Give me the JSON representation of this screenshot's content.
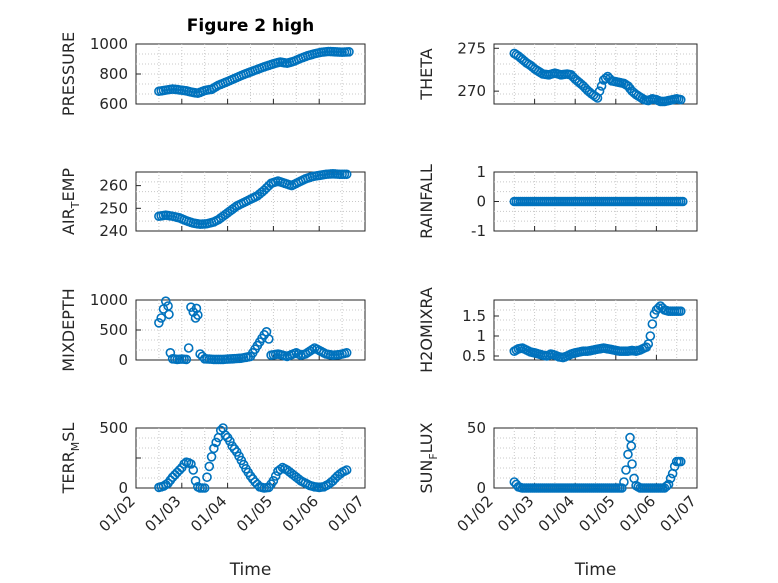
{
  "colors": {
    "marker": "#0072bd",
    "axis": "#262626",
    "grid": "#c8c8c8"
  },
  "x_tick_labels": [
    "01/02",
    "01/03",
    "01/04",
    "01/05",
    "01/06",
    "01/07"
  ],
  "chart_data": [
    {
      "type": "scatter",
      "id": "pressure",
      "title": "Figure 2 high",
      "ylabel": "PRESSURE",
      "ylabel_sub": "",
      "ylabel_tail": "",
      "xlabel": "",
      "xlim": [
        0,
        5
      ],
      "ylim": [
        600,
        1000
      ],
      "yticks": [
        600,
        800,
        1000
      ],
      "ytick_labels": [
        "600",
        "800",
        "1000"
      ],
      "grid": true,
      "points": [
        [
          0.5,
          685
        ],
        [
          0.8,
          700
        ],
        [
          1.0,
          692
        ],
        [
          1.1,
          688
        ],
        [
          1.2,
          680
        ],
        [
          1.35,
          672
        ],
        [
          1.5,
          690
        ],
        [
          1.65,
          698
        ],
        [
          1.8,
          725
        ],
        [
          2.0,
          750
        ],
        [
          2.15,
          770
        ],
        [
          2.3,
          790
        ],
        [
          2.45,
          808
        ],
        [
          2.6,
          825
        ],
        [
          2.8,
          848
        ],
        [
          3.0,
          868
        ],
        [
          3.15,
          880
        ],
        [
          3.3,
          872
        ],
        [
          3.45,
          885
        ],
        [
          3.6,
          905
        ],
        [
          3.75,
          922
        ],
        [
          3.9,
          935
        ],
        [
          4.05,
          945
        ],
        [
          4.2,
          950
        ],
        [
          4.35,
          948
        ],
        [
          4.5,
          945
        ],
        [
          4.65,
          948
        ]
      ]
    },
    {
      "type": "scatter",
      "id": "theta",
      "title": "",
      "ylabel": "THETA",
      "ylabel_sub": "",
      "ylabel_tail": "",
      "xlabel": "",
      "xlim": [
        0,
        5
      ],
      "ylim": [
        268.5,
        275.5
      ],
      "yticks": [
        270,
        275
      ],
      "ytick_labels": [
        "270",
        "275"
      ],
      "grid": true,
      "points": [
        [
          0.5,
          274.4
        ],
        [
          0.6,
          274.1
        ],
        [
          0.7,
          273.7
        ],
        [
          0.8,
          273.3
        ],
        [
          0.9,
          273.0
        ],
        [
          1.0,
          272.6
        ],
        [
          1.1,
          272.3
        ],
        [
          1.2,
          272.0
        ],
        [
          1.35,
          271.9
        ],
        [
          1.5,
          272.1
        ],
        [
          1.65,
          271.9
        ],
        [
          1.8,
          272.0
        ],
        [
          1.9,
          271.9
        ],
        [
          2.0,
          271.4
        ],
        [
          2.1,
          271.0
        ],
        [
          2.2,
          270.6
        ],
        [
          2.3,
          270.1
        ],
        [
          2.4,
          269.7
        ],
        [
          2.55,
          269.2
        ],
        [
          2.6,
          270.0
        ],
        [
          2.65,
          270.6
        ],
        [
          2.7,
          271.3
        ],
        [
          2.8,
          271.7
        ],
        [
          2.9,
          271.2
        ],
        [
          3.0,
          271.1
        ],
        [
          3.1,
          271.0
        ],
        [
          3.2,
          270.9
        ],
        [
          3.3,
          270.6
        ],
        [
          3.4,
          270.0
        ],
        [
          3.5,
          269.6
        ],
        [
          3.6,
          269.3
        ],
        [
          3.7,
          269.0
        ],
        [
          3.8,
          268.9
        ],
        [
          3.9,
          269.1
        ],
        [
          4.0,
          269.0
        ],
        [
          4.1,
          268.8
        ],
        [
          4.2,
          268.8
        ],
        [
          4.3,
          268.9
        ],
        [
          4.4,
          269.0
        ],
        [
          4.5,
          269.1
        ],
        [
          4.6,
          269.0
        ]
      ]
    },
    {
      "type": "scatter",
      "id": "air_temp",
      "title": "",
      "ylabel": "AIR",
      "ylabel_sub": "T",
      "ylabel_tail": "EMP",
      "xlabel": "",
      "xlim": [
        0,
        5
      ],
      "ylim": [
        240,
        266
      ],
      "yticks": [
        240,
        250,
        260
      ],
      "ytick_labels": [
        "240",
        "250",
        "260"
      ],
      "grid": true,
      "points": [
        [
          0.5,
          246.5
        ],
        [
          0.65,
          247.0
        ],
        [
          0.8,
          246.5
        ],
        [
          0.95,
          245.8
        ],
        [
          1.1,
          244.5
        ],
        [
          1.25,
          243.5
        ],
        [
          1.4,
          243.0
        ],
        [
          1.55,
          243.2
        ],
        [
          1.7,
          244.0
        ],
        [
          1.8,
          245.0
        ],
        [
          1.9,
          246.5
        ],
        [
          2.0,
          248.0
        ],
        [
          2.1,
          249.5
        ],
        [
          2.2,
          251.0
        ],
        [
          2.35,
          252.5
        ],
        [
          2.5,
          254.0
        ],
        [
          2.65,
          255.5
        ],
        [
          2.8,
          258.0
        ],
        [
          2.95,
          261.0
        ],
        [
          3.1,
          262.0
        ],
        [
          3.25,
          261.0
        ],
        [
          3.4,
          260.0
        ],
        [
          3.55,
          261.5
        ],
        [
          3.7,
          263.0
        ],
        [
          3.85,
          264.0
        ],
        [
          4.0,
          264.5
        ],
        [
          4.15,
          265.0
        ],
        [
          4.3,
          265.2
        ],
        [
          4.45,
          265.0
        ],
        [
          4.6,
          265.0
        ]
      ]
    },
    {
      "type": "scatter",
      "id": "rainfall",
      "title": "",
      "ylabel": "RAINFALL",
      "ylabel_sub": "",
      "ylabel_tail": "",
      "xlabel": "",
      "xlim": [
        0,
        5
      ],
      "ylim": [
        -1,
        1
      ],
      "yticks": [
        -1,
        0,
        1
      ],
      "ytick_labels": [
        "-1",
        "0",
        "1"
      ],
      "grid": true,
      "points": [
        [
          0.5,
          0
        ],
        [
          0.65,
          0
        ],
        [
          0.8,
          0
        ],
        [
          0.95,
          0
        ],
        [
          1.1,
          0
        ],
        [
          1.25,
          0
        ],
        [
          1.4,
          0
        ],
        [
          1.55,
          0
        ],
        [
          1.7,
          0
        ],
        [
          1.85,
          0
        ],
        [
          2.0,
          0
        ],
        [
          2.15,
          0
        ],
        [
          2.3,
          0
        ],
        [
          2.45,
          0
        ],
        [
          2.6,
          0
        ],
        [
          2.75,
          0
        ],
        [
          2.9,
          0
        ],
        [
          3.05,
          0
        ],
        [
          3.2,
          0
        ],
        [
          3.35,
          0
        ],
        [
          3.5,
          0
        ],
        [
          3.65,
          0
        ],
        [
          3.8,
          0
        ],
        [
          3.95,
          0
        ],
        [
          4.1,
          0
        ],
        [
          4.25,
          0
        ],
        [
          4.4,
          0
        ],
        [
          4.55,
          0
        ],
        [
          4.65,
          0
        ]
      ]
    },
    {
      "type": "scatter",
      "id": "mixdepth",
      "title": "",
      "ylabel": "MIXDEPTH",
      "ylabel_sub": "",
      "ylabel_tail": "",
      "xlabel": "",
      "xlim": [
        0,
        5
      ],
      "ylim": [
        0,
        1000
      ],
      "yticks": [
        0,
        500,
        1000
      ],
      "ytick_labels": [
        "0",
        "500",
        "1000"
      ],
      "grid": true,
      "points": [
        [
          0.5,
          620
        ],
        [
          0.55,
          700
        ],
        [
          0.6,
          850
        ],
        [
          0.65,
          980
        ],
        [
          0.7,
          900
        ],
        [
          0.72,
          760
        ],
        [
          0.75,
          120
        ],
        [
          0.8,
          20
        ],
        [
          0.9,
          10
        ],
        [
          1.0,
          15
        ],
        [
          1.1,
          10
        ],
        [
          1.15,
          200
        ],
        [
          1.2,
          880
        ],
        [
          1.25,
          800
        ],
        [
          1.3,
          700
        ],
        [
          1.32,
          860
        ],
        [
          1.35,
          750
        ],
        [
          1.4,
          100
        ],
        [
          1.5,
          20
        ],
        [
          1.7,
          10
        ],
        [
          1.9,
          10
        ],
        [
          2.1,
          20
        ],
        [
          2.3,
          30
        ],
        [
          2.5,
          60
        ],
        [
          2.6,
          180
        ],
        [
          2.7,
          300
        ],
        [
          2.8,
          420
        ],
        [
          2.85,
          470
        ],
        [
          2.9,
          350
        ],
        [
          2.95,
          80
        ],
        [
          3.1,
          100
        ],
        [
          3.3,
          60
        ],
        [
          3.5,
          120
        ],
        [
          3.6,
          80
        ],
        [
          3.7,
          100
        ],
        [
          3.8,
          150
        ],
        [
          3.9,
          200
        ],
        [
          4.0,
          160
        ],
        [
          4.15,
          100
        ],
        [
          4.3,
          80
        ],
        [
          4.45,
          90
        ],
        [
          4.6,
          120
        ]
      ]
    },
    {
      "type": "scatter",
      "id": "h2omixra",
      "title": "",
      "ylabel": "H2OMIXRA",
      "ylabel_sub": "",
      "ylabel_tail": "",
      "xlabel": "",
      "xlim": [
        0,
        5
      ],
      "ylim": [
        0.4,
        1.9
      ],
      "yticks": [
        0.5,
        1,
        1.5
      ],
      "ytick_labels": [
        "0.5",
        "1",
        "1.5"
      ],
      "grid": true,
      "points": [
        [
          0.5,
          0.62
        ],
        [
          0.6,
          0.68
        ],
        [
          0.7,
          0.7
        ],
        [
          0.8,
          0.65
        ],
        [
          0.9,
          0.6
        ],
        [
          1.0,
          0.58
        ],
        [
          1.1,
          0.55
        ],
        [
          1.2,
          0.52
        ],
        [
          1.3,
          0.5
        ],
        [
          1.4,
          0.55
        ],
        [
          1.5,
          0.52
        ],
        [
          1.6,
          0.48
        ],
        [
          1.7,
          0.46
        ],
        [
          1.8,
          0.5
        ],
        [
          1.9,
          0.55
        ],
        [
          2.0,
          0.58
        ],
        [
          2.1,
          0.6
        ],
        [
          2.2,
          0.62
        ],
        [
          2.3,
          0.62
        ],
        [
          2.4,
          0.64
        ],
        [
          2.5,
          0.66
        ],
        [
          2.6,
          0.68
        ],
        [
          2.7,
          0.7
        ],
        [
          2.8,
          0.68
        ],
        [
          2.9,
          0.66
        ],
        [
          3.0,
          0.64
        ],
        [
          3.1,
          0.62
        ],
        [
          3.2,
          0.62
        ],
        [
          3.3,
          0.62
        ],
        [
          3.4,
          0.64
        ],
        [
          3.5,
          0.62
        ],
        [
          3.6,
          0.65
        ],
        [
          3.7,
          0.7
        ],
        [
          3.75,
          0.72
        ],
        [
          3.8,
          0.8
        ],
        [
          3.85,
          1.0
        ],
        [
          3.9,
          1.3
        ],
        [
          3.95,
          1.55
        ],
        [
          4.0,
          1.65
        ],
        [
          4.05,
          1.7
        ],
        [
          4.1,
          1.75
        ],
        [
          4.15,
          1.7
        ],
        [
          4.2,
          1.65
        ],
        [
          4.3,
          1.62
        ],
        [
          4.4,
          1.62
        ],
        [
          4.5,
          1.62
        ],
        [
          4.6,
          1.62
        ]
      ]
    },
    {
      "type": "scatter",
      "id": "terr_msl",
      "title": "",
      "ylabel": "TERR",
      "ylabel_sub": "M",
      "ylabel_tail": "SL",
      "xlabel": "Time",
      "xlim": [
        0,
        5
      ],
      "ylim": [
        0,
        500
      ],
      "yticks": [
        0,
        250,
        500
      ],
      "ytick_labels": [
        "0",
        "",
        "500"
      ],
      "grid": true,
      "points": [
        [
          0.5,
          5
        ],
        [
          0.6,
          15
        ],
        [
          0.7,
          40
        ],
        [
          0.8,
          90
        ],
        [
          0.9,
          130
        ],
        [
          1.0,
          170
        ],
        [
          1.05,
          200
        ],
        [
          1.1,
          215
        ],
        [
          1.15,
          210
        ],
        [
          1.2,
          200
        ],
        [
          1.25,
          150
        ],
        [
          1.3,
          60
        ],
        [
          1.35,
          10
        ],
        [
          1.4,
          0
        ],
        [
          1.5,
          0
        ],
        [
          1.6,
          180
        ],
        [
          1.65,
          260
        ],
        [
          1.7,
          330
        ],
        [
          1.75,
          380
        ],
        [
          1.8,
          420
        ],
        [
          1.85,
          480
        ],
        [
          1.9,
          500
        ],
        [
          1.95,
          440
        ],
        [
          2.0,
          420
        ],
        [
          2.05,
          390
        ],
        [
          2.1,
          350
        ],
        [
          2.2,
          300
        ],
        [
          2.3,
          230
        ],
        [
          2.4,
          160
        ],
        [
          2.5,
          100
        ],
        [
          2.6,
          50
        ],
        [
          2.7,
          10
        ],
        [
          2.8,
          0
        ],
        [
          2.9,
          5
        ],
        [
          3.0,
          60
        ],
        [
          3.1,
          140
        ],
        [
          3.2,
          170
        ],
        [
          3.3,
          150
        ],
        [
          3.4,
          120
        ],
        [
          3.5,
          90
        ],
        [
          3.6,
          60
        ],
        [
          3.7,
          40
        ],
        [
          3.8,
          20
        ],
        [
          3.9,
          10
        ],
        [
          4.0,
          5
        ],
        [
          4.1,
          10
        ],
        [
          4.2,
          30
        ],
        [
          4.3,
          60
        ],
        [
          4.4,
          100
        ],
        [
          4.5,
          130
        ],
        [
          4.6,
          150
        ]
      ]
    },
    {
      "type": "scatter",
      "id": "sun_flux",
      "title": "",
      "ylabel": "SUN",
      "ylabel_sub": "F",
      "ylabel_tail": "LUX",
      "xlabel": "Time",
      "xlim": [
        0,
        5
      ],
      "ylim": [
        0,
        50
      ],
      "yticks": [
        0,
        50
      ],
      "ytick_labels": [
        "0",
        "50"
      ],
      "grid": true,
      "points": [
        [
          0.5,
          5
        ],
        [
          0.55,
          3
        ],
        [
          0.6,
          1
        ],
        [
          0.7,
          0
        ],
        [
          0.9,
          0
        ],
        [
          1.1,
          0
        ],
        [
          1.3,
          0
        ],
        [
          1.5,
          0
        ],
        [
          1.7,
          0
        ],
        [
          1.9,
          0
        ],
        [
          2.1,
          0
        ],
        [
          2.3,
          0
        ],
        [
          2.5,
          0
        ],
        [
          2.7,
          0
        ],
        [
          2.9,
          0
        ],
        [
          3.05,
          0
        ],
        [
          3.15,
          0
        ],
        [
          3.2,
          5
        ],
        [
          3.25,
          15
        ],
        [
          3.3,
          28
        ],
        [
          3.35,
          42
        ],
        [
          3.38,
          35
        ],
        [
          3.4,
          20
        ],
        [
          3.45,
          8
        ],
        [
          3.5,
          2
        ],
        [
          3.6,
          0
        ],
        [
          3.7,
          0
        ],
        [
          3.8,
          0
        ],
        [
          3.9,
          0
        ],
        [
          4.0,
          0
        ],
        [
          4.1,
          0
        ],
        [
          4.2,
          0
        ],
        [
          4.3,
          3
        ],
        [
          4.35,
          8
        ],
        [
          4.4,
          12
        ],
        [
          4.45,
          18
        ],
        [
          4.5,
          22
        ],
        [
          4.55,
          22
        ],
        [
          4.6,
          22
        ]
      ]
    }
  ]
}
